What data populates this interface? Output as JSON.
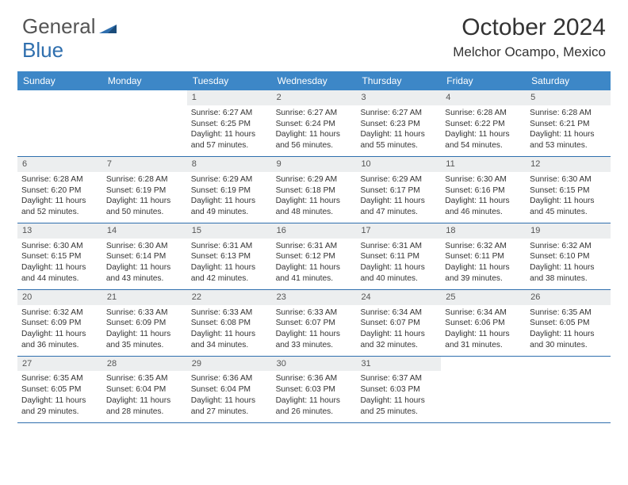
{
  "logo": {
    "general": "General",
    "blue": "Blue",
    "triangle_fill": "#2f6fae",
    "triangle_accent": "#1a4c7a"
  },
  "title": "October 2024",
  "location": "Melchor Ocampo, Mexico",
  "colors": {
    "header_bg": "#3d87c7",
    "header_text": "#ffffff",
    "row_divider": "#2f6fae",
    "daynum_bg": "#eceeef",
    "text": "#333333"
  },
  "day_names": [
    "Sunday",
    "Monday",
    "Tuesday",
    "Wednesday",
    "Thursday",
    "Friday",
    "Saturday"
  ],
  "weeks": [
    [
      {
        "empty": true
      },
      {
        "empty": true
      },
      {
        "num": "1",
        "sunrise": "6:27 AM",
        "sunset": "6:25 PM",
        "daylight": "11 hours and 57 minutes."
      },
      {
        "num": "2",
        "sunrise": "6:27 AM",
        "sunset": "6:24 PM",
        "daylight": "11 hours and 56 minutes."
      },
      {
        "num": "3",
        "sunrise": "6:27 AM",
        "sunset": "6:23 PM",
        "daylight": "11 hours and 55 minutes."
      },
      {
        "num": "4",
        "sunrise": "6:28 AM",
        "sunset": "6:22 PM",
        "daylight": "11 hours and 54 minutes."
      },
      {
        "num": "5",
        "sunrise": "6:28 AM",
        "sunset": "6:21 PM",
        "daylight": "11 hours and 53 minutes."
      }
    ],
    [
      {
        "num": "6",
        "sunrise": "6:28 AM",
        "sunset": "6:20 PM",
        "daylight": "11 hours and 52 minutes."
      },
      {
        "num": "7",
        "sunrise": "6:28 AM",
        "sunset": "6:19 PM",
        "daylight": "11 hours and 50 minutes."
      },
      {
        "num": "8",
        "sunrise": "6:29 AM",
        "sunset": "6:19 PM",
        "daylight": "11 hours and 49 minutes."
      },
      {
        "num": "9",
        "sunrise": "6:29 AM",
        "sunset": "6:18 PM",
        "daylight": "11 hours and 48 minutes."
      },
      {
        "num": "10",
        "sunrise": "6:29 AM",
        "sunset": "6:17 PM",
        "daylight": "11 hours and 47 minutes."
      },
      {
        "num": "11",
        "sunrise": "6:30 AM",
        "sunset": "6:16 PM",
        "daylight": "11 hours and 46 minutes."
      },
      {
        "num": "12",
        "sunrise": "6:30 AM",
        "sunset": "6:15 PM",
        "daylight": "11 hours and 45 minutes."
      }
    ],
    [
      {
        "num": "13",
        "sunrise": "6:30 AM",
        "sunset": "6:15 PM",
        "daylight": "11 hours and 44 minutes."
      },
      {
        "num": "14",
        "sunrise": "6:30 AM",
        "sunset": "6:14 PM",
        "daylight": "11 hours and 43 minutes."
      },
      {
        "num": "15",
        "sunrise": "6:31 AM",
        "sunset": "6:13 PM",
        "daylight": "11 hours and 42 minutes."
      },
      {
        "num": "16",
        "sunrise": "6:31 AM",
        "sunset": "6:12 PM",
        "daylight": "11 hours and 41 minutes."
      },
      {
        "num": "17",
        "sunrise": "6:31 AM",
        "sunset": "6:11 PM",
        "daylight": "11 hours and 40 minutes."
      },
      {
        "num": "18",
        "sunrise": "6:32 AM",
        "sunset": "6:11 PM",
        "daylight": "11 hours and 39 minutes."
      },
      {
        "num": "19",
        "sunrise": "6:32 AM",
        "sunset": "6:10 PM",
        "daylight": "11 hours and 38 minutes."
      }
    ],
    [
      {
        "num": "20",
        "sunrise": "6:32 AM",
        "sunset": "6:09 PM",
        "daylight": "11 hours and 36 minutes."
      },
      {
        "num": "21",
        "sunrise": "6:33 AM",
        "sunset": "6:09 PM",
        "daylight": "11 hours and 35 minutes."
      },
      {
        "num": "22",
        "sunrise": "6:33 AM",
        "sunset": "6:08 PM",
        "daylight": "11 hours and 34 minutes."
      },
      {
        "num": "23",
        "sunrise": "6:33 AM",
        "sunset": "6:07 PM",
        "daylight": "11 hours and 33 minutes."
      },
      {
        "num": "24",
        "sunrise": "6:34 AM",
        "sunset": "6:07 PM",
        "daylight": "11 hours and 32 minutes."
      },
      {
        "num": "25",
        "sunrise": "6:34 AM",
        "sunset": "6:06 PM",
        "daylight": "11 hours and 31 minutes."
      },
      {
        "num": "26",
        "sunrise": "6:35 AM",
        "sunset": "6:05 PM",
        "daylight": "11 hours and 30 minutes."
      }
    ],
    [
      {
        "num": "27",
        "sunrise": "6:35 AM",
        "sunset": "6:05 PM",
        "daylight": "11 hours and 29 minutes."
      },
      {
        "num": "28",
        "sunrise": "6:35 AM",
        "sunset": "6:04 PM",
        "daylight": "11 hours and 28 minutes."
      },
      {
        "num": "29",
        "sunrise": "6:36 AM",
        "sunset": "6:04 PM",
        "daylight": "11 hours and 27 minutes."
      },
      {
        "num": "30",
        "sunrise": "6:36 AM",
        "sunset": "6:03 PM",
        "daylight": "11 hours and 26 minutes."
      },
      {
        "num": "31",
        "sunrise": "6:37 AM",
        "sunset": "6:03 PM",
        "daylight": "11 hours and 25 minutes."
      },
      {
        "empty": true
      },
      {
        "empty": true
      }
    ]
  ],
  "labels": {
    "sunrise": "Sunrise:",
    "sunset": "Sunset:",
    "daylight": "Daylight:"
  }
}
